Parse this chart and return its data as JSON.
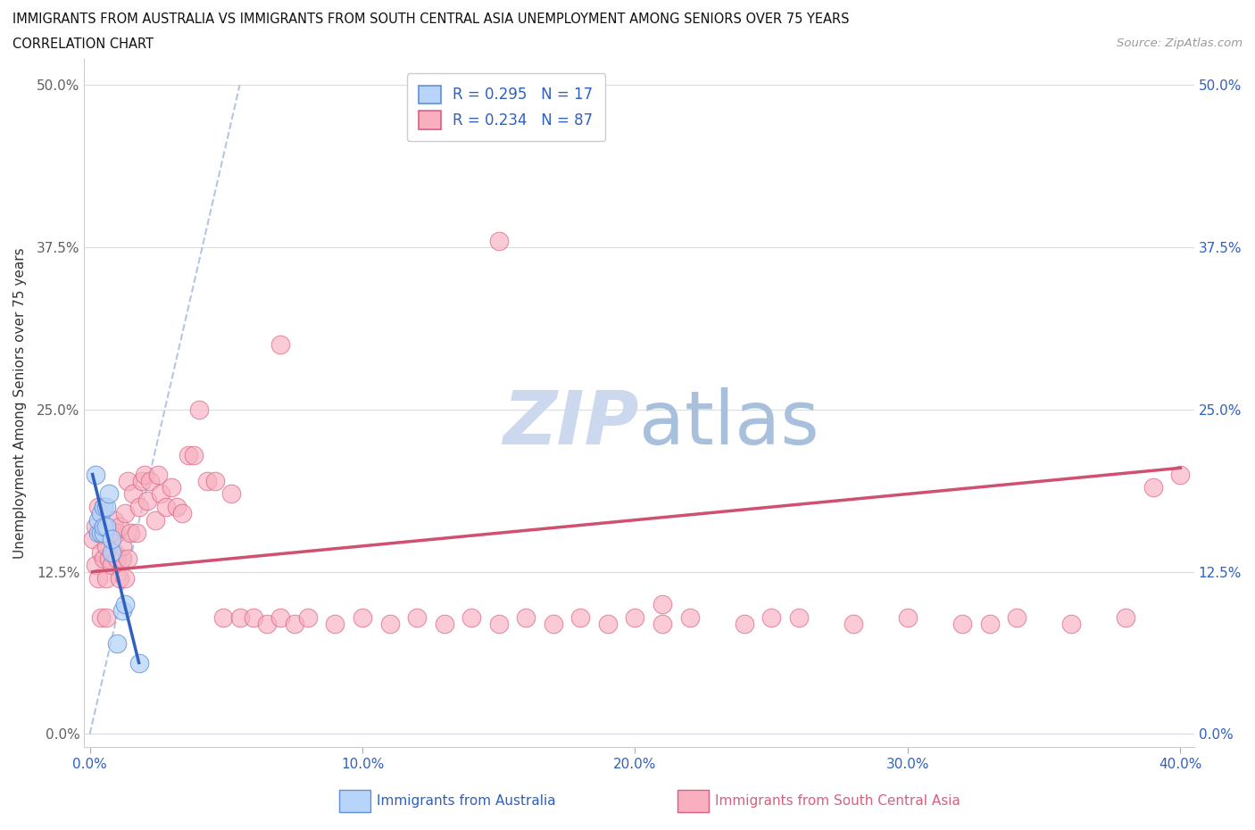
{
  "title_line1": "IMMIGRANTS FROM AUSTRALIA VS IMMIGRANTS FROM SOUTH CENTRAL ASIA UNEMPLOYMENT AMONG SENIORS OVER 75 YEARS",
  "title_line2": "CORRELATION CHART",
  "source_text": "Source: ZipAtlas.com",
  "ylabel": "Unemployment Among Seniors over 75 years",
  "xlim": [
    -0.002,
    0.405
  ],
  "ylim": [
    -0.01,
    0.52
  ],
  "xticks": [
    0.0,
    0.1,
    0.2,
    0.3,
    0.4
  ],
  "xticklabels": [
    "0.0%",
    "10.0%",
    "20.0%",
    "30.0%",
    "40.0%"
  ],
  "yticks": [
    0.0,
    0.125,
    0.25,
    0.375,
    0.5
  ],
  "yticklabels": [
    "0.0%",
    "12.5%",
    "25.0%",
    "37.5%",
    "50.0%"
  ],
  "legend_r1": "R = 0.295",
  "legend_n1": "N = 17",
  "legend_r2": "R = 0.234",
  "legend_n2": "N = 87",
  "color_australia_fill": "#b8d4f8",
  "color_australia_edge": "#6090d8",
  "color_sca_fill": "#f8b0c0",
  "color_sca_edge": "#d86080",
  "color_australia_regline": "#3060c0",
  "color_sca_regline": "#d05070",
  "color_diag_line": "#a0b8e0",
  "color_tick_blue": "#3060c0",
  "color_tick_gray": "#606060",
  "color_grid": "#d8dce8",
  "watermark_color": "#ccd8ee",
  "australia_x": [
    0.002,
    0.003,
    0.003,
    0.004,
    0.004,
    0.005,
    0.005,
    0.005,
    0.006,
    0.006,
    0.007,
    0.008,
    0.008,
    0.01,
    0.012,
    0.013,
    0.018
  ],
  "australia_y": [
    0.2,
    0.155,
    0.165,
    0.155,
    0.17,
    0.155,
    0.16,
    0.175,
    0.16,
    0.175,
    0.185,
    0.14,
    0.15,
    0.07,
    0.095,
    0.1,
    0.055
  ],
  "sca_x": [
    0.001,
    0.002,
    0.002,
    0.003,
    0.003,
    0.004,
    0.004,
    0.004,
    0.005,
    0.005,
    0.005,
    0.006,
    0.006,
    0.006,
    0.007,
    0.007,
    0.008,
    0.008,
    0.009,
    0.009,
    0.01,
    0.01,
    0.011,
    0.011,
    0.012,
    0.012,
    0.013,
    0.013,
    0.014,
    0.014,
    0.015,
    0.016,
    0.017,
    0.018,
    0.019,
    0.02,
    0.021,
    0.022,
    0.024,
    0.025,
    0.026,
    0.028,
    0.03,
    0.032,
    0.034,
    0.036,
    0.038,
    0.04,
    0.043,
    0.046,
    0.049,
    0.052,
    0.055,
    0.06,
    0.065,
    0.07,
    0.075,
    0.08,
    0.09,
    0.1,
    0.11,
    0.12,
    0.13,
    0.14,
    0.15,
    0.16,
    0.17,
    0.18,
    0.19,
    0.2,
    0.21,
    0.22,
    0.24,
    0.26,
    0.28,
    0.3,
    0.32,
    0.34,
    0.36,
    0.38,
    0.39,
    0.4,
    0.21,
    0.25,
    0.33,
    0.15,
    0.07
  ],
  "sca_y": [
    0.15,
    0.13,
    0.16,
    0.12,
    0.175,
    0.14,
    0.155,
    0.09,
    0.135,
    0.155,
    0.175,
    0.12,
    0.145,
    0.09,
    0.135,
    0.155,
    0.13,
    0.155,
    0.14,
    0.165,
    0.135,
    0.155,
    0.12,
    0.16,
    0.135,
    0.145,
    0.17,
    0.12,
    0.135,
    0.195,
    0.155,
    0.185,
    0.155,
    0.175,
    0.195,
    0.2,
    0.18,
    0.195,
    0.165,
    0.2,
    0.185,
    0.175,
    0.19,
    0.175,
    0.17,
    0.215,
    0.215,
    0.25,
    0.195,
    0.195,
    0.09,
    0.185,
    0.09,
    0.09,
    0.085,
    0.09,
    0.085,
    0.09,
    0.085,
    0.09,
    0.085,
    0.09,
    0.085,
    0.09,
    0.085,
    0.09,
    0.085,
    0.09,
    0.085,
    0.09,
    0.085,
    0.09,
    0.085,
    0.09,
    0.085,
    0.09,
    0.085,
    0.09,
    0.085,
    0.09,
    0.19,
    0.2,
    0.1,
    0.09,
    0.085,
    0.38,
    0.3
  ],
  "diag_line_x": [
    0.0,
    0.055
  ],
  "diag_line_y": [
    0.0,
    0.5
  ],
  "aus_regline_x": [
    0.001,
    0.018
  ],
  "aus_regline_y": [
    0.2,
    0.055
  ],
  "sca_regline_x": [
    0.001,
    0.4
  ],
  "sca_regline_y": [
    0.125,
    0.205
  ]
}
